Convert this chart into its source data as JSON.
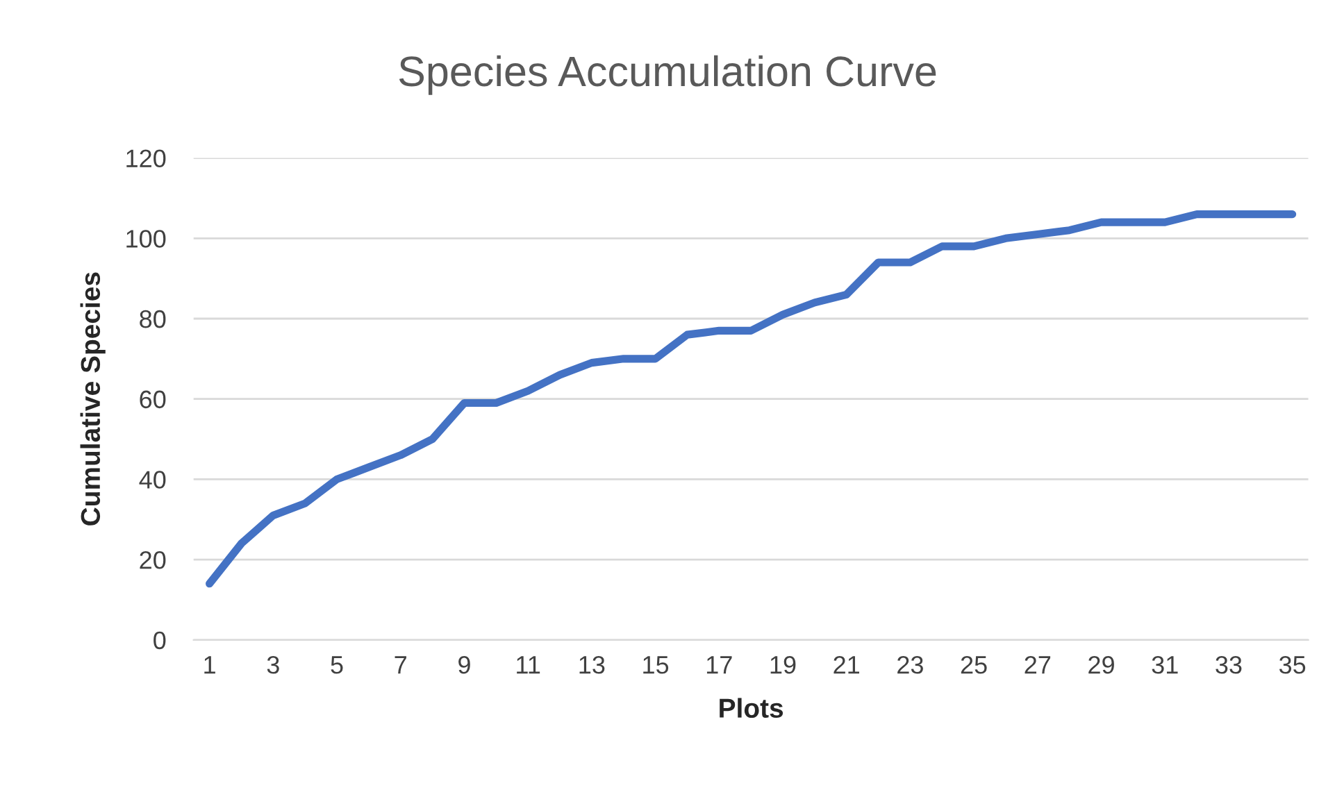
{
  "chart_data": {
    "type": "line",
    "title": "Species Accumulation Curve",
    "xlabel": "Plots",
    "ylabel": "Cumulative Species",
    "categories": [
      "1",
      null,
      "3",
      null,
      "5",
      null,
      "7",
      null,
      "9",
      null,
      "11",
      null,
      "13",
      null,
      "15",
      null,
      "17",
      null,
      "19",
      null,
      "21",
      null,
      "23",
      null,
      "25",
      null,
      "27",
      null,
      "29",
      null,
      "31",
      null,
      "33",
      null,
      "35"
    ],
    "series": [
      {
        "color": "#4472c4",
        "values": [
          14,
          24,
          31,
          34,
          40,
          43,
          46,
          50,
          59,
          59,
          62,
          66,
          69,
          70,
          70,
          76,
          77,
          77,
          81,
          84,
          86,
          94,
          94,
          98,
          98,
          100,
          101,
          102,
          104,
          104,
          104,
          106,
          106,
          106,
          106
        ]
      }
    ],
    "ylim": [
      0,
      120
    ],
    "yticks": [
      0,
      20,
      40,
      60,
      80,
      100,
      120
    ],
    "grid": "y",
    "legend": false,
    "marker": "none",
    "line_style": "solid"
  }
}
